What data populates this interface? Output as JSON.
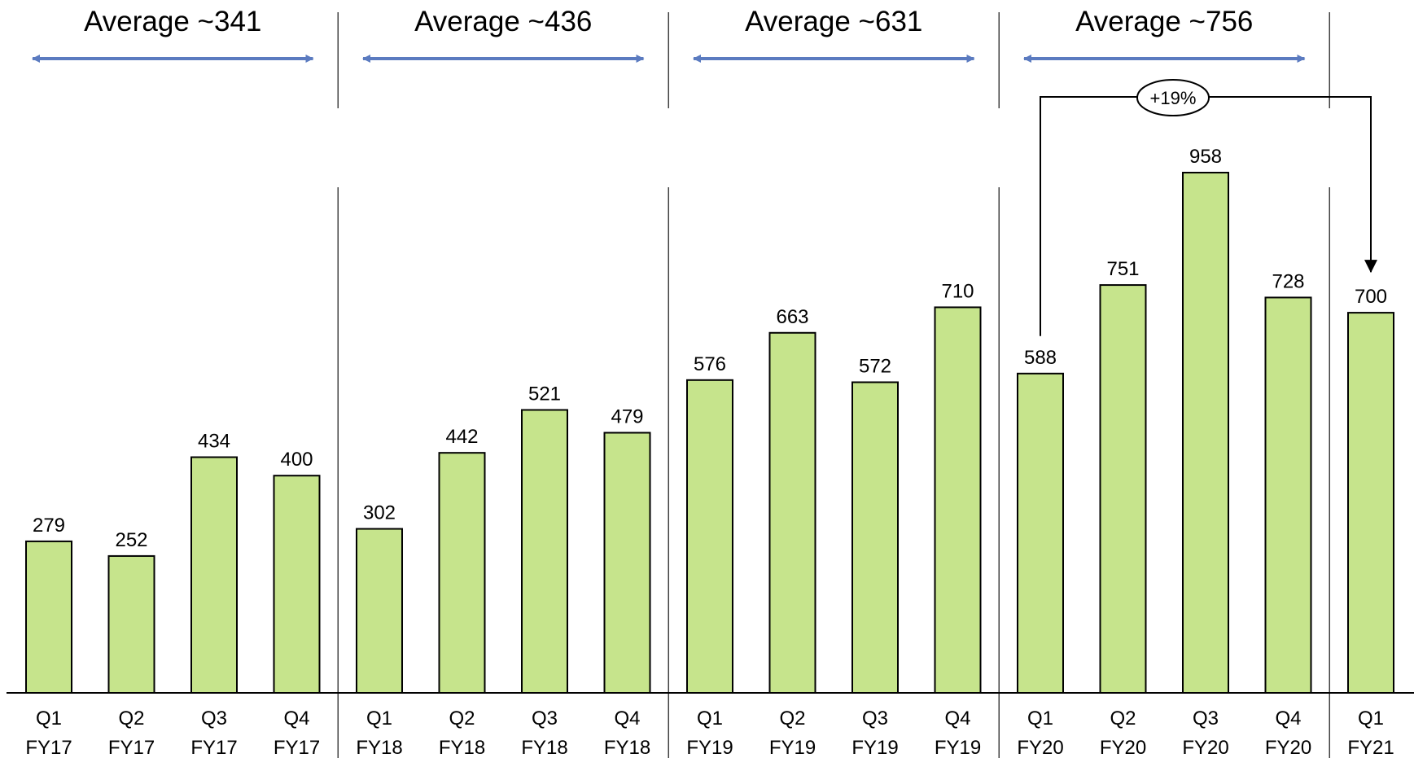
{
  "chart_data": {
    "type": "bar",
    "categories": [
      [
        "Q1",
        "FY17"
      ],
      [
        "Q2",
        "FY17"
      ],
      [
        "Q3",
        "FY17"
      ],
      [
        "Q4",
        "FY17"
      ],
      [
        "Q1",
        "FY18"
      ],
      [
        "Q2",
        "FY18"
      ],
      [
        "Q3",
        "FY18"
      ],
      [
        "Q4",
        "FY18"
      ],
      [
        "Q1",
        "FY19"
      ],
      [
        "Q2",
        "FY19"
      ],
      [
        "Q3",
        "FY19"
      ],
      [
        "Q4",
        "FY19"
      ],
      [
        "Q1",
        "FY20"
      ],
      [
        "Q2",
        "FY20"
      ],
      [
        "Q3",
        "FY20"
      ],
      [
        "Q4",
        "FY20"
      ],
      [
        "Q1",
        "FY21"
      ]
    ],
    "values": [
      279,
      252,
      434,
      400,
      302,
      442,
      521,
      479,
      576,
      663,
      572,
      710,
      588,
      751,
      958,
      728,
      700
    ],
    "data_labels": [
      "279",
      "252",
      "434",
      "400",
      "302",
      "442",
      "521",
      "479",
      "576",
      "663",
      "572",
      "710",
      "588",
      "751",
      "958",
      "728",
      "700"
    ],
    "ylim": [
      0,
      1000
    ],
    "grid": false,
    "colors": {
      "bar_fill": "#c6e48c",
      "bar_stroke": "#000000",
      "average_arrow": "#5b7bc0",
      "divider": "#404040"
    },
    "annotations": {
      "averages": [
        {
          "text": "Average ~341",
          "from_index": 0,
          "to_index": 3
        },
        {
          "text": "Average ~436",
          "from_index": 4,
          "to_index": 7
        },
        {
          "text": "Average ~631",
          "from_index": 8,
          "to_index": 11
        },
        {
          "text": "Average ~756",
          "from_index": 12,
          "to_index": 15
        }
      ],
      "growth": {
        "text": "+19%",
        "from_index": 12,
        "to_index": 16
      }
    }
  }
}
